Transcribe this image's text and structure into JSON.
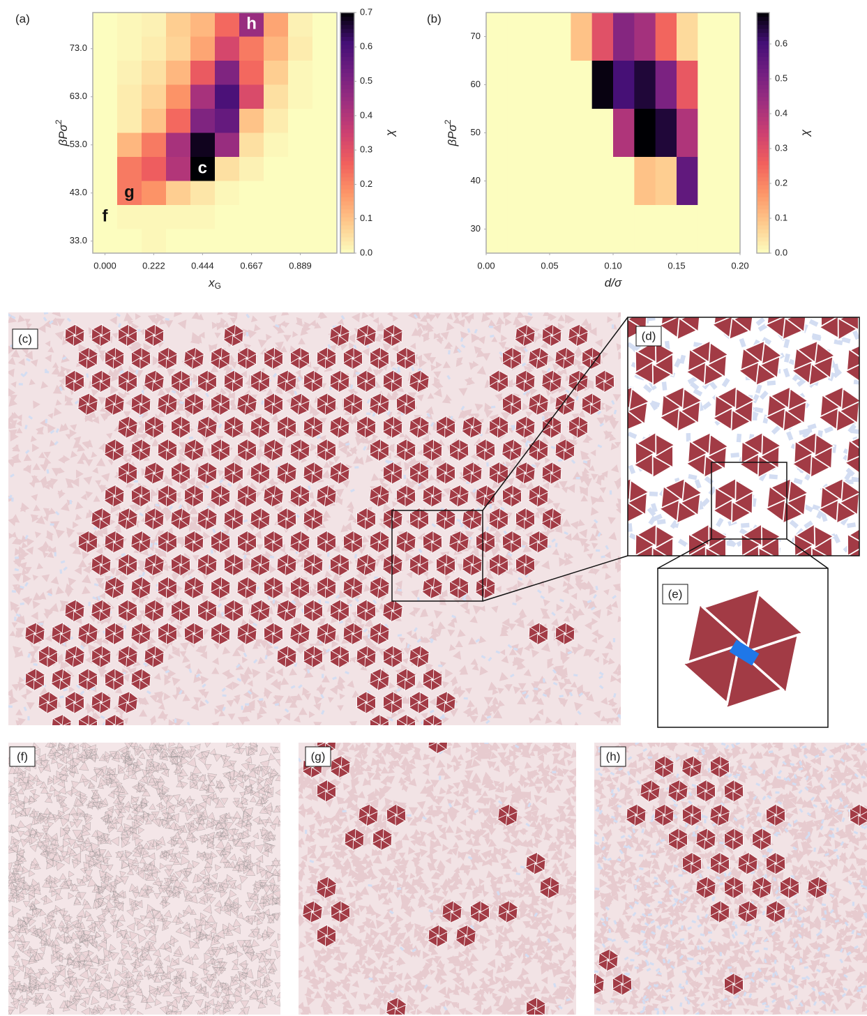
{
  "chart_data": [
    {
      "type": "heatmap",
      "panel": "(a)",
      "x_label": "x",
      "x_label_sub": "G",
      "y_label": "βPσ",
      "y_label_sup": "2",
      "colorbar_label": "χ",
      "xlim": [
        -0.0556,
        1.0556
      ],
      "ylim": [
        30.5,
        80.5
      ],
      "xticks": [
        {
          "value": 0,
          "label": "0.000"
        },
        0.222,
        0.444,
        0.667,
        0.889
      ],
      "yticks": [
        {
          "value": 33,
          "label": "33.0"
        },
        {
          "value": 43,
          "label": "43.0"
        },
        {
          "value": 53,
          "label": "53.0"
        },
        {
          "value": 63,
          "label": "63.0"
        },
        {
          "value": 73,
          "label": "73.0"
        }
      ],
      "clim": [
        0,
        0.7
      ],
      "cticks": [
        {
          "value": 0,
          "label": "0.0"
        },
        0.1,
        0.2,
        0.3,
        0.4,
        0.5,
        0.6,
        0.7
      ],
      "z": [
        [
          0,
          0.01,
          0.02,
          0.08,
          0.12,
          0.25,
          0.45,
          0.15,
          0.02,
          0
        ],
        [
          0,
          0.01,
          0.03,
          0.07,
          0.15,
          0.33,
          0.22,
          0.12,
          0.03,
          0
        ],
        [
          0,
          0.02,
          0.05,
          0.12,
          0.28,
          0.5,
          0.25,
          0.08,
          0.01,
          0
        ],
        [
          0,
          0.03,
          0.07,
          0.18,
          0.42,
          0.6,
          0.32,
          0.05,
          0.01,
          0
        ],
        [
          0,
          0.03,
          0.1,
          0.25,
          0.5,
          0.55,
          0.1,
          0.03,
          0,
          0
        ],
        [
          0,
          0.12,
          0.22,
          0.42,
          0.68,
          0.45,
          0.05,
          0.01,
          0,
          0
        ],
        [
          0,
          0.22,
          0.27,
          0.4,
          0.7,
          0.05,
          0.02,
          0,
          0,
          0
        ],
        [
          0,
          0.22,
          0.18,
          0.08,
          0.04,
          0.01,
          0,
          0,
          0,
          0
        ],
        [
          0,
          0.01,
          0.01,
          0.01,
          0.01,
          0,
          0,
          0,
          0,
          0
        ],
        [
          0,
          0,
          0.01,
          0,
          0,
          0,
          0,
          0,
          0,
          0
        ]
      ],
      "annotations": [
        {
          "text": "f",
          "x": 0,
          "y": 38,
          "color": "#111"
        },
        {
          "text": "g",
          "x": 0.111,
          "y": 43,
          "color": "#111"
        },
        {
          "text": "c",
          "x": 0.444,
          "y": 48,
          "color": "#fff"
        },
        {
          "text": "h",
          "x": 0.667,
          "y": 78,
          "color": "#fff"
        }
      ]
    },
    {
      "type": "heatmap",
      "panel": "(b)",
      "x_label": "d/σ",
      "y_label": "βPσ",
      "y_label_sup": "2",
      "colorbar_label": "χ",
      "xlim": [
        0,
        0.2
      ],
      "ylim": [
        25,
        75
      ],
      "xticks": [
        {
          "value": 0,
          "label": "0.00"
        },
        0.05,
        {
          "value": 0.1,
          "label": "0.10"
        },
        0.15,
        {
          "value": 0.2,
          "label": "0.20"
        }
      ],
      "yticks": [
        30,
        40,
        50,
        60,
        70
      ],
      "clim": [
        0,
        0.69
      ],
      "cticks": [
        {
          "value": 0,
          "label": "0.0"
        },
        0.1,
        0.2,
        0.3,
        0.4,
        0.5,
        0.6
      ],
      "z": [
        [
          0,
          0,
          0,
          0,
          0.1,
          0.3,
          0.48,
          0.42,
          0.25,
          0.06,
          0,
          0
        ],
        [
          0,
          0,
          0,
          0,
          0,
          0.68,
          0.6,
          0.65,
          0.5,
          0.28,
          0,
          0
        ],
        [
          0,
          0,
          0,
          0,
          0,
          0,
          0.4,
          0.69,
          0.65,
          0.4,
          0,
          0
        ],
        [
          0,
          0,
          0,
          0,
          0,
          0,
          0,
          0.1,
          0.08,
          0.55,
          0,
          0
        ],
        [
          0,
          0,
          0,
          0,
          0,
          0,
          0,
          0,
          0,
          0,
          0,
          0
        ]
      ],
      "annotations": []
    }
  ],
  "panels": [
    "(c)",
    "(d)",
    "(e)",
    "(f)",
    "(g)",
    "(h)"
  ]
}
